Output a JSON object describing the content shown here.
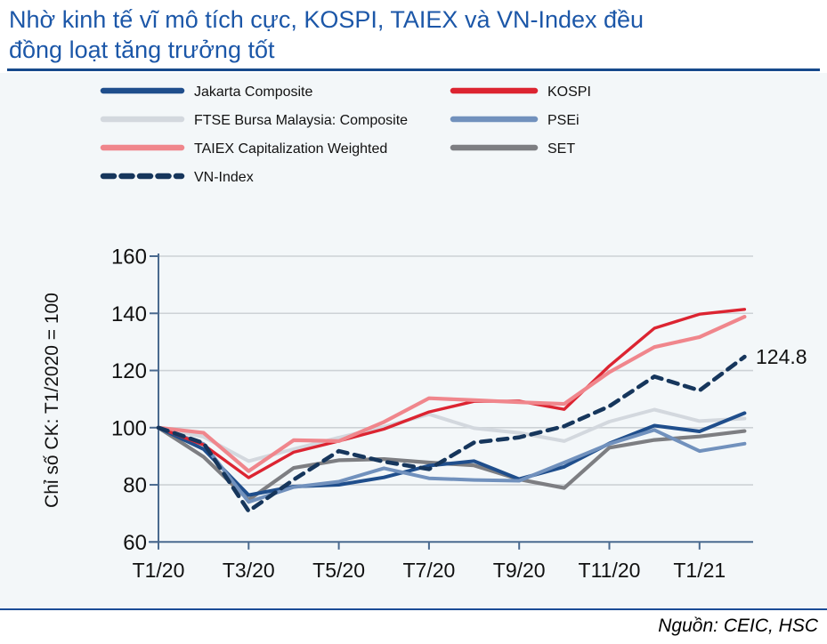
{
  "header": {
    "line1": "Nhờ kinh tế vĩ mô tích cực, KOSPI, TAIEX và VN-Index đều",
    "line2": "đồng loạt tăng trưởng tốt"
  },
  "footer": {
    "source": "Nguồn: CEIC, HSC"
  },
  "chart_data": {
    "type": "line",
    "title": "Nhờ kinh tế vĩ mô tích cực, KOSPI, TAIEX và VN-Index đều đồng loạt tăng trưởng tốt",
    "xlabel": "",
    "ylabel": "Chỉ số CK: T1/2020 = 100",
    "ylim": [
      60,
      160
    ],
    "y_ticks": [
      60,
      80,
      100,
      120,
      140,
      160
    ],
    "grid": "horizontal",
    "legend_position": "top",
    "x": [
      "T1/20",
      "T2/20",
      "T3/20",
      "T4/20",
      "T5/20",
      "T6/20",
      "T7/20",
      "T8/20",
      "T9/20",
      "T10/20",
      "T11/20",
      "T12/20",
      "T1/21",
      "T2/21"
    ],
    "x_tick_indices": [
      0,
      2,
      4,
      6,
      8,
      10,
      12
    ],
    "x_tick_labels": [
      "T1/20",
      "T3/20",
      "T5/20",
      "T7/20",
      "T9/20",
      "T11/20",
      "T1/21"
    ],
    "annotation": {
      "text": "124.8",
      "series": "VN-Index",
      "point_index": 13
    },
    "colors": {
      "jakarta": "#1f4e8c",
      "kospi": "#dc2431",
      "ftse": "#d3d8de",
      "psei": "#7191bd",
      "taiex": "#f0868c",
      "set": "#7d7e82",
      "vn_index": "#16365c",
      "gridline": "#cdd2d6",
      "axis": "#4a6a8f",
      "panel_background": "#f3f7f9",
      "title_blue": "#1c57a8"
    },
    "legend": {
      "column1": [
        "Jakarta Composite",
        "FTSE Bursa Malaysia: Composite",
        "TAIEX Capitalization Weighted",
        "VN-Index"
      ],
      "column2": [
        "KOSPI",
        "PSEi",
        "SET"
      ]
    },
    "series": [
      {
        "name": "FTSE Bursa Malaysia: Composite",
        "key": "ftse",
        "color": "#d3d8de",
        "style": "solid",
        "line_width": 4,
        "values": [
          100,
          96.8,
          88.3,
          92.5,
          96.5,
          100.3,
          104.7,
          99.8,
          98.2,
          95.3,
          102.1,
          106.3,
          102.3,
          103.2
        ]
      },
      {
        "name": "SET",
        "key": "set",
        "color": "#7d7e82",
        "style": "solid",
        "line_width": 4.2,
        "values": [
          100,
          89.8,
          74.7,
          85.9,
          88.6,
          89.0,
          87.8,
          86.8,
          81.9,
          78.9,
          93.0,
          95.7,
          96.9,
          98.8
        ]
      },
      {
        "name": "Jakarta Composite",
        "key": "jakarta",
        "color": "#1f4e8c",
        "style": "solid",
        "line_width": 4,
        "values": [
          100,
          92.5,
          76.4,
          79.4,
          80.0,
          82.6,
          86.7,
          88.3,
          82.0,
          86.3,
          94.5,
          100.7,
          98.7,
          105.1
        ]
      },
      {
        "name": "PSEi",
        "key": "psei",
        "color": "#7191bd",
        "style": "solid",
        "line_width": 4,
        "values": [
          100,
          94.3,
          74.0,
          79.2,
          81.1,
          85.8,
          82.3,
          81.7,
          81.4,
          87.8,
          94.3,
          99.2,
          91.8,
          94.4
        ]
      },
      {
        "name": "KOSPI",
        "key": "kospi",
        "color": "#dc2431",
        "style": "solid",
        "line_width": 3.4,
        "values": [
          100,
          94.0,
          82.5,
          91.4,
          95.3,
          99.5,
          105.5,
          109.2,
          109.3,
          106.4,
          121.6,
          134.8,
          139.7,
          141.4
        ]
      },
      {
        "name": "TAIEX Capitalization Weighted",
        "key": "taiex",
        "color": "#f0868c",
        "style": "solid",
        "line_width": 4.2,
        "values": [
          100,
          98.2,
          84.8,
          95.6,
          95.3,
          102.0,
          110.3,
          109.6,
          108.9,
          108.3,
          119.4,
          128.2,
          131.7,
          138.8
        ]
      },
      {
        "name": "VN-Index",
        "key": "vn_index",
        "color": "#16365c",
        "style": "dashed",
        "line_width": 4.6,
        "values": [
          100,
          94.6,
          70.8,
          81.8,
          91.8,
          88.1,
          85.5,
          94.8,
          96.6,
          100.5,
          107.5,
          117.9,
          113.0,
          124.8
        ]
      }
    ]
  }
}
